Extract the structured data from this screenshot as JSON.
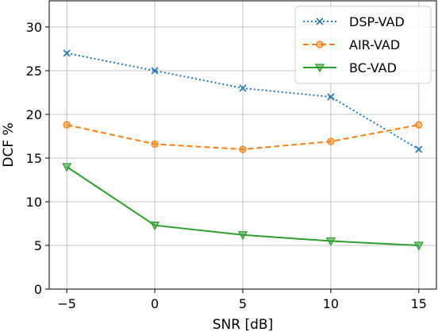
{
  "chart_data": {
    "type": "line",
    "title": "",
    "xlabel": "SNR [dB]",
    "ylabel": "DCF %",
    "x": [
      -5,
      0,
      5,
      10,
      15
    ],
    "xlim": [
      -6,
      16
    ],
    "ylim": [
      0,
      33
    ],
    "xticks": [
      -5,
      0,
      5,
      10,
      15
    ],
    "xtick_labels": [
      "−5",
      "0",
      "5",
      "10",
      "15"
    ],
    "yticks": [
      0,
      5,
      10,
      15,
      20,
      25,
      30
    ],
    "ytick_labels": [
      "0",
      "5",
      "10",
      "15",
      "20",
      "25",
      "30"
    ],
    "grid": true,
    "legend_position": "top-right",
    "series": [
      {
        "name": "DSP-VAD",
        "values": [
          27,
          25,
          23,
          22,
          16
        ],
        "color": "#1f77b4",
        "linestyle": "dotted",
        "marker": "x"
      },
      {
        "name": "AIR-VAD",
        "values": [
          18.8,
          16.6,
          16,
          16.9,
          18.8
        ],
        "color": "#ff7f0e",
        "linestyle": "dashed",
        "marker": "circle"
      },
      {
        "name": "BC-VAD",
        "values": [
          14,
          7.3,
          6.2,
          5.5,
          5
        ],
        "color": "#2ca02c",
        "linestyle": "solid",
        "marker": "triangle-down"
      }
    ]
  }
}
